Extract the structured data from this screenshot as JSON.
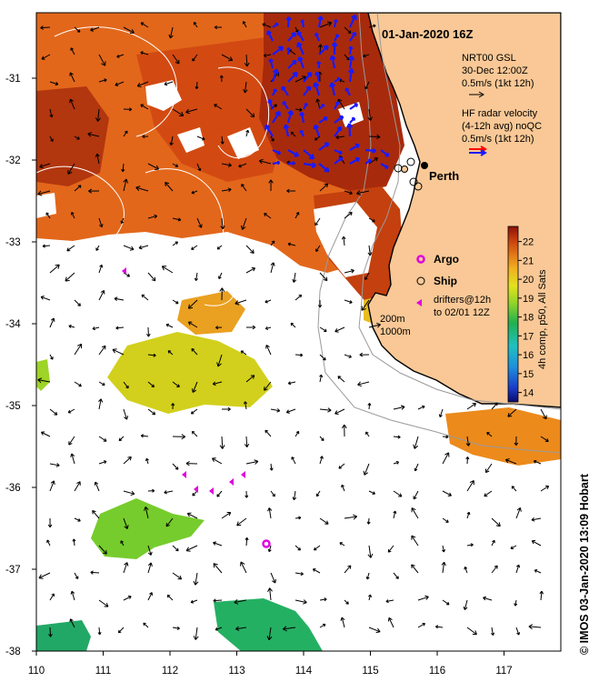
{
  "map": {
    "title": "01-Jan-2020 16Z",
    "lat_range": [
      -38,
      -30.2
    ],
    "lon_range": [
      110,
      117.85
    ],
    "lat_ticks": [
      "-31",
      "-32",
      "-33",
      "-34",
      "-35",
      "-36",
      "-37",
      "-38"
    ],
    "lon_ticks": [
      "110",
      "111",
      "112",
      "113",
      "114",
      "115",
      "116",
      "117"
    ],
    "land_color": "#f9c896",
    "coast_color": "#000000",
    "isobath_color": "#9a9a9a"
  },
  "legend": {
    "gsl_line1": "NRT00 GSL",
    "gsl_line2": "30-Dec 12:00Z",
    "gsl_line3": "0.5m/s (1kt 12h)",
    "radar_line1": "HF radar velocity",
    "radar_line2": "(4-12h avg) noQC",
    "radar_line3": "0.5m/s (1kt 12h)",
    "argo_label": "Argo",
    "ship_label": "Ship",
    "drifters_line1": "drifters@12h",
    "drifters_line2": "to 02/01 12Z",
    "isobath_line1": "200m",
    "isobath_line2": "1000m",
    "city_label": "Perth",
    "argo_color": "#e000e0",
    "radar_arrow_color": "#1a1aff",
    "radar_scale_red": "#ff0000"
  },
  "colorbar": {
    "ticks": [
      "22",
      "21",
      "20",
      "19",
      "18",
      "17",
      "16",
      "15",
      "14"
    ],
    "range": [
      13.5,
      22.8
    ],
    "label": "4h comp, p50, All Sats"
  },
  "credit": "© IMOS 03-Jan-2020 13:09 Hobart"
}
